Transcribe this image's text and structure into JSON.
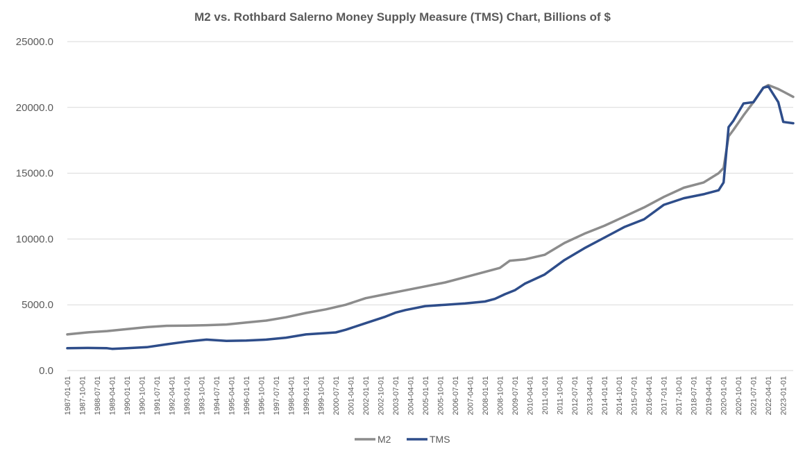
{
  "chart_data": {
    "type": "line",
    "title": "M2 vs. Rothbard Salerno Money Supply Measure (TMS) Chart, Billions of $",
    "xlabel": "",
    "ylabel": "",
    "ylim": [
      0,
      25000
    ],
    "yticks": [
      "0.0",
      "5000.0",
      "10000.0",
      "15000.0",
      "20000.0",
      "25000.0"
    ],
    "x_range": [
      "1987-01-01",
      "2023-07-01"
    ],
    "x_tick_labels": [
      "1987-01-01",
      "1987-10-01",
      "1988-07-01",
      "1989-04-01",
      "1990-01-01",
      "1990-10-01",
      "1991-07-01",
      "1992-04-01",
      "1993-01-01",
      "1993-10-01",
      "1994-07-01",
      "1995-04-01",
      "1996-01-01",
      "1996-10-01",
      "1997-07-01",
      "1998-04-01",
      "1999-01-01",
      "1999-10-01",
      "2000-07-01",
      "2001-04-01",
      "2002-01-01",
      "2002-10-01",
      "2003-07-01",
      "2004-04-01",
      "2005-01-01",
      "2005-10-01",
      "2006-07-01",
      "2007-04-01",
      "2008-01-01",
      "2008-10-01",
      "2009-07-01",
      "2010-04-01",
      "2011-01-01",
      "2011-10-01",
      "2012-07-01",
      "2013-04-01",
      "2014-01-01",
      "2014-10-01",
      "2015-07-01",
      "2016-04-01",
      "2017-01-01",
      "2017-10-01",
      "2018-07-01",
      "2019-04-01",
      "2020-01-01",
      "2020-10-01",
      "2021-07-01",
      "2022-04-01",
      "2023-01-01"
    ],
    "grid": true,
    "legend_position": "bottom",
    "series": [
      {
        "name": "M2",
        "color": "#8c8c8c",
        "points": [
          [
            "1987-01-01",
            2750
          ],
          [
            "1988-01-01",
            2900
          ],
          [
            "1989-01-01",
            3000
          ],
          [
            "1990-01-01",
            3150
          ],
          [
            "1991-01-01",
            3300
          ],
          [
            "1992-01-01",
            3400
          ],
          [
            "1993-01-01",
            3420
          ],
          [
            "1994-01-01",
            3450
          ],
          [
            "1995-01-01",
            3500
          ],
          [
            "1996-01-01",
            3650
          ],
          [
            "1997-01-01",
            3800
          ],
          [
            "1998-01-01",
            4050
          ],
          [
            "1999-01-01",
            4380
          ],
          [
            "2000-01-01",
            4650
          ],
          [
            "2001-01-01",
            5000
          ],
          [
            "2002-01-01",
            5500
          ],
          [
            "2003-01-01",
            5800
          ],
          [
            "2004-01-01",
            6100
          ],
          [
            "2005-01-01",
            6400
          ],
          [
            "2006-01-01",
            6700
          ],
          [
            "2007-01-01",
            7100
          ],
          [
            "2008-01-01",
            7500
          ],
          [
            "2008-10-01",
            7800
          ],
          [
            "2009-04-01",
            8350
          ],
          [
            "2010-01-01",
            8450
          ],
          [
            "2011-01-01",
            8800
          ],
          [
            "2012-01-01",
            9700
          ],
          [
            "2013-01-01",
            10400
          ],
          [
            "2014-01-01",
            11000
          ],
          [
            "2015-01-01",
            11700
          ],
          [
            "2016-01-01",
            12400
          ],
          [
            "2017-01-01",
            13200
          ],
          [
            "2018-01-01",
            13900
          ],
          [
            "2019-01-01",
            14300
          ],
          [
            "2019-10-01",
            15000
          ],
          [
            "2020-01-01",
            15400
          ],
          [
            "2020-04-01",
            17800
          ],
          [
            "2020-07-01",
            18300
          ],
          [
            "2021-01-01",
            19400
          ],
          [
            "2021-07-01",
            20400
          ],
          [
            "2022-01-01",
            21500
          ],
          [
            "2022-04-01",
            21700
          ],
          [
            "2022-10-01",
            21400
          ],
          [
            "2023-01-01",
            21200
          ],
          [
            "2023-07-01",
            20800
          ]
        ]
      },
      {
        "name": "TMS",
        "color": "#2e4d8a",
        "points": [
          [
            "1987-01-01",
            1700
          ],
          [
            "1988-01-01",
            1720
          ],
          [
            "1989-01-01",
            1700
          ],
          [
            "1989-04-01",
            1650
          ],
          [
            "1990-01-01",
            1700
          ],
          [
            "1991-01-01",
            1780
          ],
          [
            "1992-01-01",
            2000
          ],
          [
            "1993-01-01",
            2200
          ],
          [
            "1994-01-01",
            2350
          ],
          [
            "1995-01-01",
            2250
          ],
          [
            "1996-01-01",
            2280
          ],
          [
            "1997-01-01",
            2350
          ],
          [
            "1998-01-01",
            2500
          ],
          [
            "1999-01-01",
            2750
          ],
          [
            "2000-01-01",
            2850
          ],
          [
            "2000-07-01",
            2900
          ],
          [
            "2001-01-01",
            3100
          ],
          [
            "2002-01-01",
            3600
          ],
          [
            "2003-01-01",
            4100
          ],
          [
            "2003-07-01",
            4400
          ],
          [
            "2004-01-01",
            4600
          ],
          [
            "2005-01-01",
            4900
          ],
          [
            "2006-01-01",
            5000
          ],
          [
            "2007-01-01",
            5100
          ],
          [
            "2008-01-01",
            5250
          ],
          [
            "2008-07-01",
            5450
          ],
          [
            "2009-01-01",
            5800
          ],
          [
            "2009-07-01",
            6100
          ],
          [
            "2010-01-01",
            6600
          ],
          [
            "2011-01-01",
            7300
          ],
          [
            "2012-01-01",
            8400
          ],
          [
            "2013-01-01",
            9300
          ],
          [
            "2014-01-01",
            10100
          ],
          [
            "2015-01-01",
            10900
          ],
          [
            "2016-01-01",
            11500
          ],
          [
            "2017-01-01",
            12600
          ],
          [
            "2018-01-01",
            13100
          ],
          [
            "2019-01-01",
            13400
          ],
          [
            "2019-10-01",
            13700
          ],
          [
            "2020-01-01",
            14300
          ],
          [
            "2020-04-01",
            18500
          ],
          [
            "2020-07-01",
            19000
          ],
          [
            "2021-01-01",
            20300
          ],
          [
            "2021-07-01",
            20400
          ],
          [
            "2022-01-01",
            21500
          ],
          [
            "2022-04-01",
            21600
          ],
          [
            "2022-10-01",
            20400
          ],
          [
            "2023-01-01",
            18900
          ],
          [
            "2023-07-01",
            18800
          ]
        ]
      }
    ]
  }
}
